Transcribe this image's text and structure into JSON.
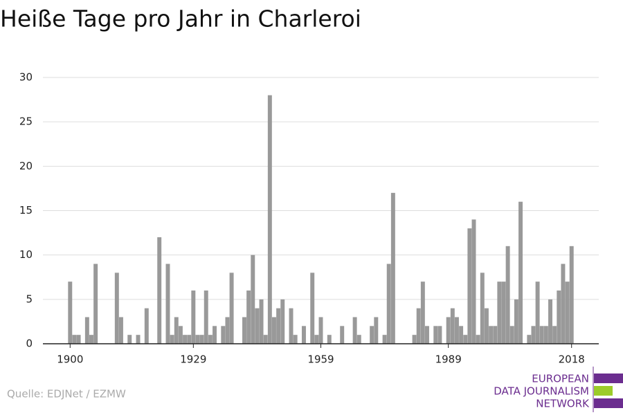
{
  "chart_data": {
    "type": "bar",
    "title": "Heiße Tage pro Jahr in Charleroi",
    "source": "Quelle: EDJNet / EZMW",
    "logo": [
      "EUROPEAN",
      "DATA JOURNALISM",
      "NETWORK"
    ],
    "color": "#999999",
    "x": [
      1900,
      1901,
      1902,
      1903,
      1904,
      1905,
      1906,
      1907,
      1908,
      1909,
      1910,
      1911,
      1912,
      1913,
      1914,
      1915,
      1916,
      1917,
      1918,
      1919,
      1920,
      1921,
      1922,
      1923,
      1924,
      1925,
      1926,
      1927,
      1928,
      1929,
      1930,
      1931,
      1932,
      1933,
      1934,
      1935,
      1936,
      1937,
      1938,
      1939,
      1940,
      1941,
      1942,
      1943,
      1944,
      1945,
      1946,
      1947,
      1948,
      1949,
      1950,
      1951,
      1952,
      1953,
      1954,
      1955,
      1956,
      1957,
      1958,
      1959,
      1960,
      1961,
      1962,
      1963,
      1964,
      1965,
      1966,
      1967,
      1968,
      1969,
      1970,
      1971,
      1972,
      1973,
      1974,
      1975,
      1976,
      1977,
      1978,
      1979,
      1980,
      1981,
      1982,
      1983,
      1984,
      1985,
      1986,
      1987,
      1988,
      1989,
      1990,
      1991,
      1992,
      1993,
      1994,
      1995,
      1996,
      1997,
      1998,
      1999,
      2000,
      2001,
      2002,
      2003,
      2004,
      2005,
      2006,
      2007,
      2008,
      2009,
      2010,
      2011,
      2012,
      2013,
      2014,
      2015,
      2016,
      2017,
      2018
    ],
    "values": [
      7,
      1,
      1,
      0,
      3,
      1,
      9,
      0,
      0,
      0,
      0,
      8,
      3,
      0,
      1,
      0,
      1,
      0,
      4,
      0,
      0,
      12,
      0,
      9,
      1,
      3,
      2,
      1,
      1,
      6,
      1,
      1,
      6,
      1,
      2,
      0,
      2,
      3,
      8,
      0,
      0,
      3,
      6,
      10,
      4,
      5,
      1,
      28,
      3,
      4,
      5,
      0,
      4,
      1,
      0,
      2,
      0,
      8,
      1,
      3,
      0,
      1,
      0,
      0,
      2,
      0,
      0,
      3,
      1,
      0,
      0,
      2,
      3,
      0,
      1,
      9,
      17,
      0,
      0,
      0,
      0,
      1,
      4,
      7,
      2,
      0,
      2,
      2,
      0,
      3,
      4,
      3,
      2,
      1,
      13,
      14,
      1,
      8,
      4,
      2,
      2,
      7,
      7,
      11,
      2,
      5,
      16,
      0,
      1,
      2,
      7,
      2,
      2,
      5,
      2,
      6,
      9,
      7,
      11
    ],
    "xlim": [
      1893.6,
      2024.4
    ],
    "xticks": [
      1900,
      1929,
      1959,
      1989,
      2018
    ],
    "ylim": [
      0,
      30
    ],
    "yticks": [
      0,
      5,
      10,
      15,
      20,
      25,
      30
    ],
    "grid": true
  }
}
